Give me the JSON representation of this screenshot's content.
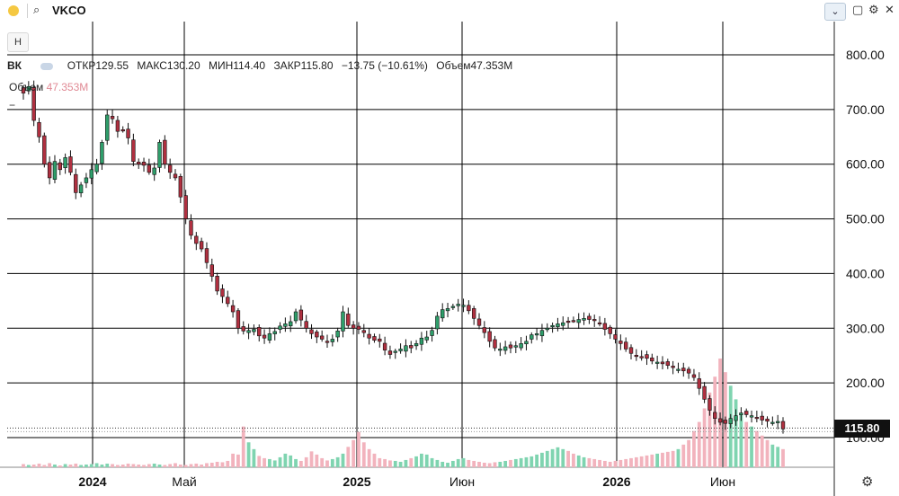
{
  "toolbar": {
    "symbol": "VKCO",
    "chevron": "⌄",
    "icons": {
      "restore": "▢",
      "settings": "⚙",
      "close": "✕"
    }
  },
  "legend": {
    "interval_button": "H",
    "symbol_short": "ВК",
    "open": "ОТКР129.55",
    "high": "МАКС130.20",
    "low": "МИН114.40",
    "close": "ЗАКР115.80",
    "change": "−13.75 (−10.61%)",
    "volume": "Объем47.353М",
    "volume_label": "Объем",
    "volume_value": "47.353М",
    "collapse": "−"
  },
  "last_price": "115.80",
  "colors": {
    "up": "#2e9e6a",
    "down": "#b03040",
    "vol_up": "#7fd4b0",
    "vol_down": "#f2b3bd",
    "grid": "#000000"
  },
  "chart_data": {
    "type": "candlestick",
    "y_ticks": [
      "100.00",
      "200.00",
      "300.00",
      "400.00",
      "500.00",
      "600.00",
      "700.00",
      "800.00"
    ],
    "x_labels": [
      "2024",
      "Май",
      "2025",
      "Июн",
      "2026",
      "Июн"
    ],
    "ylim": [
      45,
      825
    ],
    "grid": true,
    "closes": [
      730,
      742,
      680,
      650,
      600,
      575,
      605,
      590,
      612,
      585,
      548,
      562,
      575,
      590,
      600,
      640,
      690,
      683,
      660,
      662,
      648,
      605,
      600,
      598,
      585,
      593,
      640,
      600,
      585,
      575,
      540,
      500,
      470,
      455,
      445,
      420,
      395,
      368,
      358,
      345,
      330,
      300,
      295,
      296,
      298,
      286,
      282,
      290,
      294,
      304,
      308,
      312,
      330,
      315,
      300,
      290,
      284,
      280,
      276,
      280,
      295,
      330,
      305,
      300,
      298,
      292,
      282,
      278,
      276,
      260,
      252,
      258,
      262,
      268,
      264,
      272,
      282,
      284,
      296,
      322,
      334,
      336,
      340,
      344,
      342,
      332,
      318,
      305,
      292,
      276,
      264,
      262,
      266,
      264,
      268,
      272,
      276,
      288,
      290,
      296,
      300,
      305,
      308,
      310,
      312,
      314,
      316,
      318,
      316,
      314,
      308,
      298,
      290,
      280,
      272,
      262,
      254,
      250,
      248,
      245,
      240,
      238,
      235,
      232,
      228,
      225,
      222,
      218,
      210,
      190,
      170,
      150,
      135,
      128,
      126,
      135,
      140,
      145,
      142,
      140,
      136,
      132,
      130,
      128,
      129.55,
      115.8
    ],
    "volumes": [
      7,
      5,
      6,
      8,
      5,
      9,
      6,
      4,
      7,
      6,
      8,
      5,
      6,
      7,
      9,
      6,
      8,
      7,
      5,
      6,
      8,
      7,
      6,
      5,
      7,
      8,
      6,
      5,
      7,
      9,
      6,
      5,
      7,
      8,
      6,
      9,
      10,
      12,
      11,
      14,
      30,
      28,
      90,
      55,
      40,
      25,
      20,
      18,
      15,
      22,
      30,
      26,
      18,
      14,
      22,
      35,
      28,
      20,
      15,
      18,
      22,
      30,
      45,
      60,
      78,
      55,
      40,
      30,
      20,
      18,
      15,
      14,
      12,
      16,
      20,
      24,
      30,
      28,
      20,
      16,
      12,
      10,
      14,
      18,
      20,
      16,
      14,
      12,
      10,
      9,
      11,
      12,
      14,
      16,
      18,
      20,
      22,
      24,
      28,
      32,
      36,
      40,
      44,
      40,
      36,
      30,
      26,
      22,
      20,
      18,
      16,
      14,
      12,
      14,
      16,
      18,
      20,
      22,
      24,
      26,
      28,
      30,
      32,
      34,
      36,
      40,
      50,
      60,
      80,
      100,
      130,
      165,
      200,
      240,
      210,
      180,
      150,
      120,
      100,
      90,
      80,
      70,
      60,
      50,
      45,
      40
    ]
  }
}
